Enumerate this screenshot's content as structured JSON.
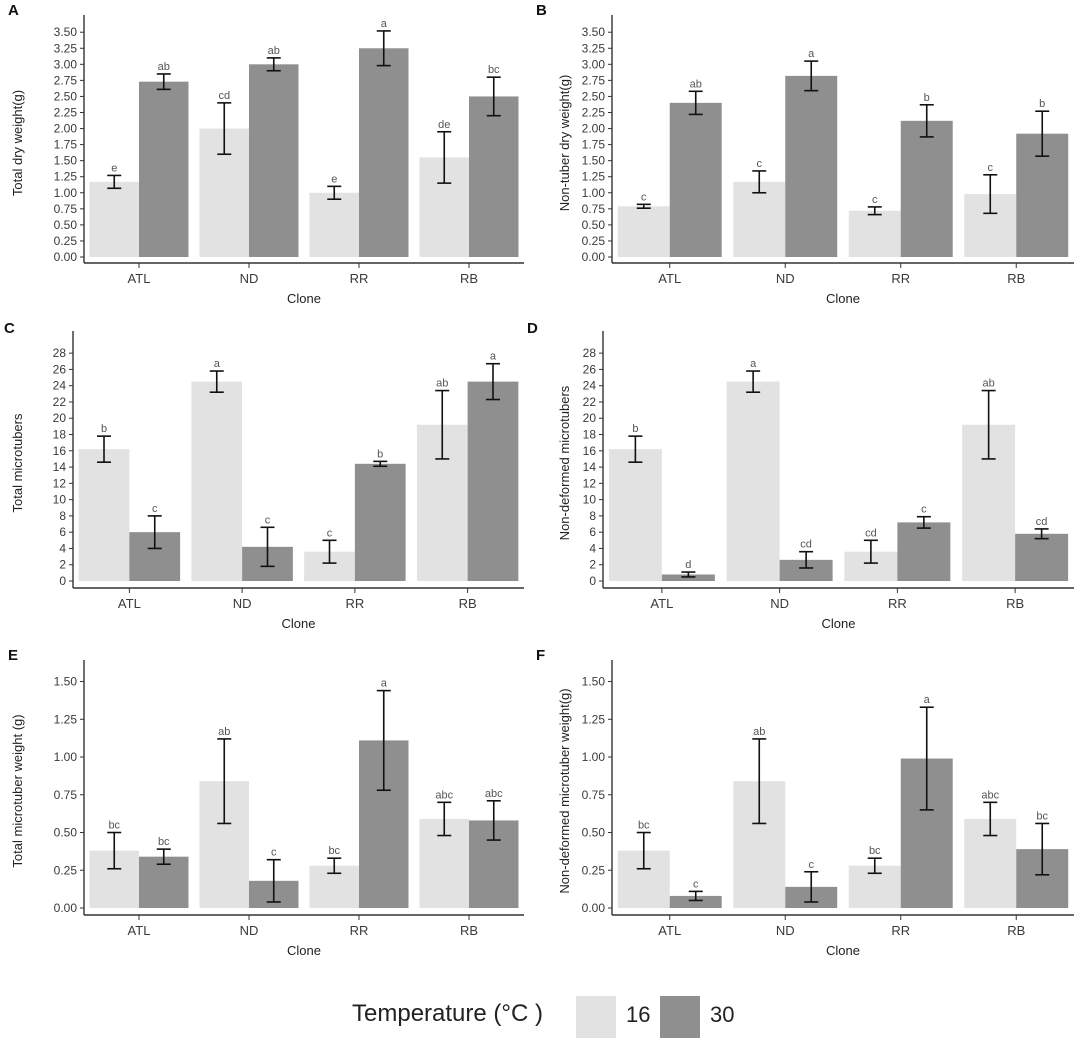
{
  "colors": {
    "t16": "#e2e2e2",
    "t30": "#8f8f8f",
    "axis": "#333333",
    "text": "#3a3a3a"
  },
  "legend": {
    "title": "Temperature (°C )",
    "items": [
      {
        "label": "16"
      },
      {
        "label": "30"
      }
    ]
  },
  "chart_data": [
    {
      "panel": "A",
      "type": "bar",
      "title": "",
      "xlabel": "Clone",
      "ylabel": "Total dry weight(g)",
      "categories": [
        "ATL",
        "ND",
        "RR",
        "RB"
      ],
      "ylim": [
        0,
        3.55
      ],
      "yticks": [
        "0.00",
        "0.25",
        "0.50",
        "0.75",
        "1.00",
        "1.25",
        "1.50",
        "1.75",
        "2.00",
        "2.25",
        "2.50",
        "2.75",
        "3.00",
        "3.25",
        "3.50"
      ],
      "series": [
        {
          "name": "16",
          "values": [
            1.17,
            2.0,
            1.0,
            1.55
          ],
          "err": [
            0.1,
            0.4,
            0.1,
            0.4
          ],
          "letters": [
            "e",
            "cd",
            "e",
            "de"
          ]
        },
        {
          "name": "30",
          "values": [
            2.73,
            3.0,
            3.25,
            2.5
          ],
          "err": [
            0.12,
            0.1,
            0.27,
            0.3
          ],
          "letters": [
            "ab",
            "ab",
            "a",
            "bc"
          ]
        }
      ]
    },
    {
      "panel": "B",
      "type": "bar",
      "title": "",
      "xlabel": "Clone",
      "ylabel": "Non-tuber dry weight(g)",
      "categories": [
        "ATL",
        "ND",
        "RR",
        "RB"
      ],
      "ylim": [
        0,
        3.55
      ],
      "yticks": [
        "0.00",
        "0.25",
        "0.50",
        "0.75",
        "1.00",
        "1.25",
        "1.50",
        "1.75",
        "2.00",
        "2.25",
        "2.50",
        "2.75",
        "3.00",
        "3.25",
        "3.50"
      ],
      "series": [
        {
          "name": "16",
          "values": [
            0.79,
            1.17,
            0.72,
            0.98
          ],
          "err": [
            0.03,
            0.17,
            0.06,
            0.3
          ],
          "letters": [
            "c",
            "c",
            "c",
            "c"
          ]
        },
        {
          "name": "30",
          "values": [
            2.4,
            2.82,
            2.12,
            1.92
          ],
          "err": [
            0.18,
            0.23,
            0.25,
            0.35
          ],
          "letters": [
            "ab",
            "a",
            "b",
            "b"
          ]
        }
      ]
    },
    {
      "panel": "C",
      "type": "bar",
      "title": "",
      "xlabel": "Clone",
      "ylabel": "Total microtubers",
      "categories": [
        "ATL",
        "ND",
        "RR",
        "RB"
      ],
      "ylim": [
        0,
        29
      ],
      "yticks": [
        "0",
        "2",
        "4",
        "6",
        "8",
        "10",
        "12",
        "14",
        "16",
        "18",
        "20",
        "22",
        "24",
        "26",
        "28"
      ],
      "series": [
        {
          "name": "16",
          "values": [
            16.2,
            24.5,
            3.6,
            19.2
          ],
          "err": [
            1.6,
            1.3,
            1.4,
            4.2
          ],
          "letters": [
            "b",
            "a",
            "c",
            "ab"
          ]
        },
        {
          "name": "30",
          "values": [
            6.0,
            4.2,
            14.4,
            24.5
          ],
          "err": [
            2.0,
            2.4,
            0.3,
            2.2
          ],
          "letters": [
            "c",
            "c",
            "b",
            "a"
          ]
        }
      ]
    },
    {
      "panel": "D",
      "type": "bar",
      "title": "",
      "xlabel": "Clone",
      "ylabel": "Non-deformed microtubers",
      "categories": [
        "ATL",
        "ND",
        "RR",
        "RB"
      ],
      "ylim": [
        0,
        29
      ],
      "yticks": [
        "0",
        "2",
        "4",
        "6",
        "8",
        "10",
        "12",
        "14",
        "16",
        "18",
        "20",
        "22",
        "24",
        "26",
        "28"
      ],
      "series": [
        {
          "name": "16",
          "values": [
            16.2,
            24.5,
            3.6,
            19.2
          ],
          "err": [
            1.6,
            1.3,
            1.4,
            4.2
          ],
          "letters": [
            "b",
            "a",
            "cd",
            "ab"
          ]
        },
        {
          "name": "30",
          "values": [
            0.8,
            2.6,
            7.2,
            5.8
          ],
          "err": [
            0.3,
            1.0,
            0.7,
            0.6
          ],
          "letters": [
            "d",
            "cd",
            "c",
            "cd"
          ]
        }
      ]
    },
    {
      "panel": "E",
      "type": "bar",
      "title": "",
      "xlabel": "Clone",
      "ylabel": "Total microtuber weight (g)",
      "categories": [
        "ATL",
        "ND",
        "RR",
        "RB"
      ],
      "ylim": [
        0,
        1.55
      ],
      "yticks": [
        "0.00",
        "0.25",
        "0.50",
        "0.75",
        "1.00",
        "1.25",
        "1.50"
      ],
      "series": [
        {
          "name": "16",
          "values": [
            0.38,
            0.84,
            0.28,
            0.59
          ],
          "err": [
            0.12,
            0.28,
            0.05,
            0.11
          ],
          "letters": [
            "bc",
            "ab",
            "bc",
            "abc"
          ]
        },
        {
          "name": "30",
          "values": [
            0.34,
            0.18,
            1.11,
            0.58
          ],
          "err": [
            0.05,
            0.14,
            0.33,
            0.13
          ],
          "letters": [
            "bc",
            "c",
            "a",
            "abc"
          ]
        }
      ]
    },
    {
      "panel": "F",
      "type": "bar",
      "title": "",
      "xlabel": "Clone",
      "ylabel": "Non-deformed microtuber weight(g)",
      "categories": [
        "ATL",
        "ND",
        "RR",
        "RB"
      ],
      "ylim": [
        0,
        1.55
      ],
      "yticks": [
        "0.00",
        "0.25",
        "0.50",
        "0.75",
        "1.00",
        "1.25",
        "1.50"
      ],
      "series": [
        {
          "name": "16",
          "values": [
            0.38,
            0.84,
            0.28,
            0.59
          ],
          "err": [
            0.12,
            0.28,
            0.05,
            0.11
          ],
          "letters": [
            "bc",
            "ab",
            "bc",
            "abc"
          ]
        },
        {
          "name": "30",
          "values": [
            0.08,
            0.14,
            0.99,
            0.39
          ],
          "err": [
            0.03,
            0.1,
            0.34,
            0.17
          ],
          "letters": [
            "c",
            "c",
            "a",
            "bc"
          ]
        }
      ]
    }
  ]
}
